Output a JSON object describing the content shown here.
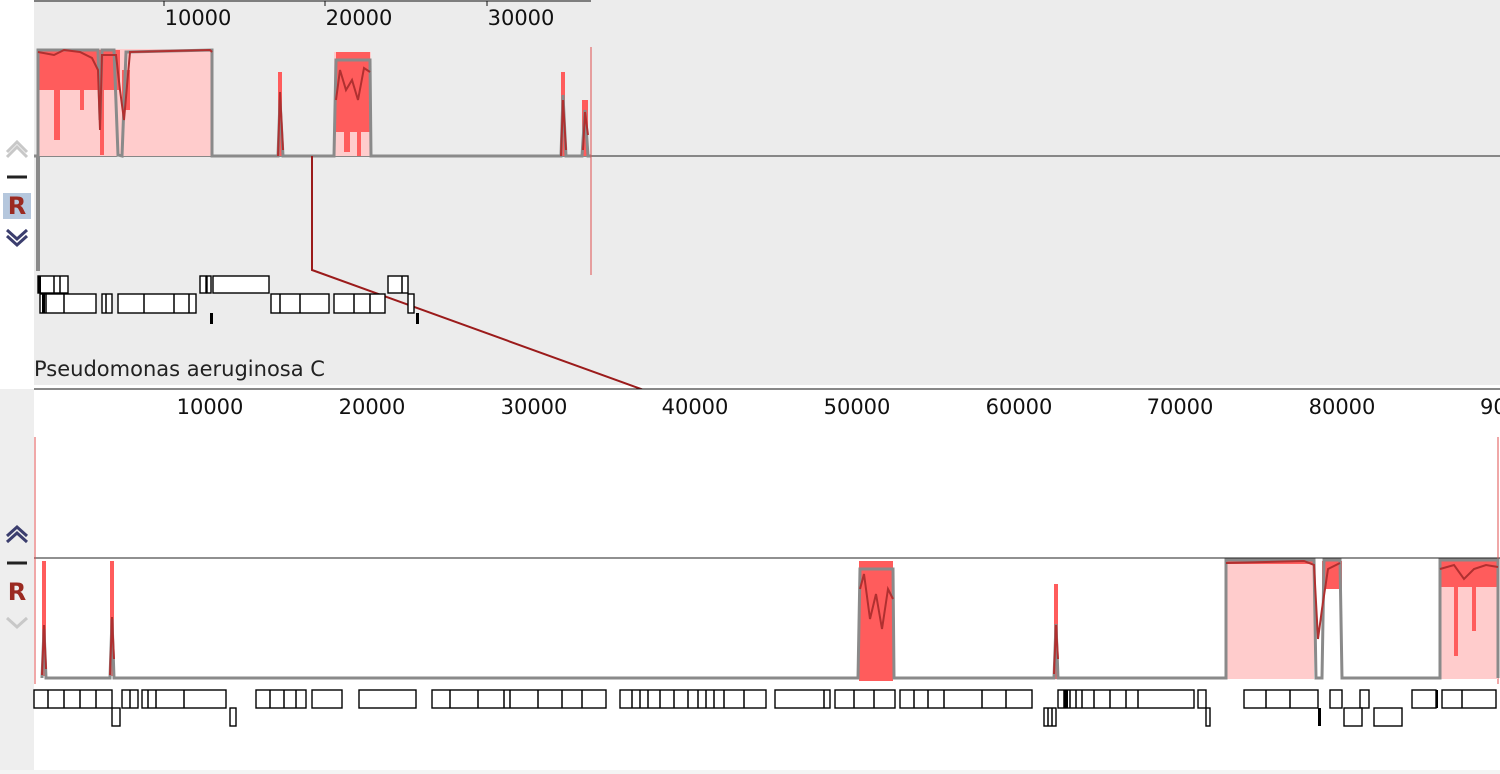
{
  "window": {
    "title": ""
  },
  "genomes": [
    {
      "name": "",
      "ruler_ticks": [
        "10000",
        "20000",
        "30000"
      ],
      "controls": {
        "reference_label": "R",
        "reference_selected": true,
        "minus_label": "–"
      }
    },
    {
      "name": "Pseudomonas aeruginosa C",
      "ruler_ticks": [
        "10000",
        "20000",
        "30000",
        "40000",
        "50000",
        "60000",
        "70000",
        "80000",
        "900"
      ],
      "controls": {
        "reference_label": "R",
        "reference_selected": false,
        "minus_label": "–"
      }
    }
  ],
  "colors": {
    "panel_bg_top": "#ececec",
    "panel_bg_bottom": "#ffffff",
    "block_fill": "#ffcccc",
    "similarity_bar": "#ff5555",
    "similarity_line": "#b03030",
    "baseline_gray": "#888888",
    "connector": "#9b1b1b",
    "reference_button": "#9b2a21"
  },
  "icons": [
    "chevron-up-icon",
    "minus-icon",
    "chevron-down-icon"
  ]
}
